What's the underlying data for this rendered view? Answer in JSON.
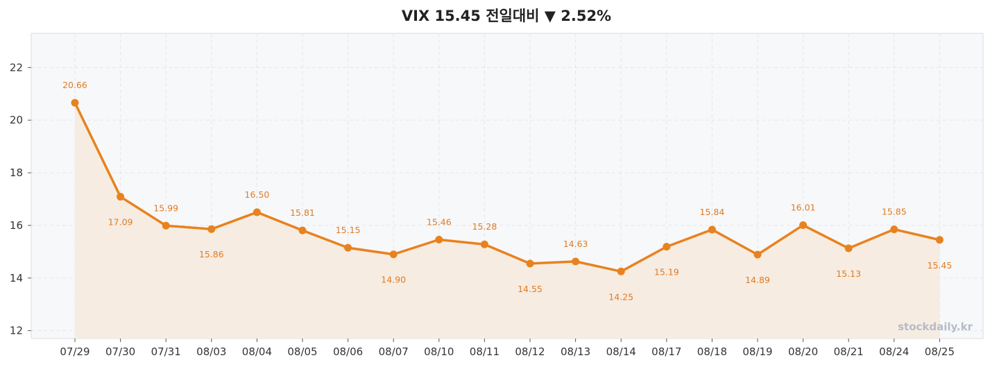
{
  "chart_data": {
    "type": "line",
    "title": "VIX  15.45  전일대비 ▼ 2.52%",
    "categories": [
      "07/29",
      "07/30",
      "07/31",
      "08/03",
      "08/04",
      "08/05",
      "08/06",
      "08/07",
      "08/10",
      "08/11",
      "08/12",
      "08/13",
      "08/14",
      "08/17",
      "08/18",
      "08/19",
      "08/20",
      "08/21",
      "08/24",
      "08/25"
    ],
    "series": [
      {
        "values": [
          20.66,
          17.09,
          15.99,
          15.86,
          16.5,
          15.81,
          15.15,
          14.9,
          15.46,
          15.28,
          14.55,
          14.63,
          14.25,
          15.19,
          15.84,
          14.89,
          16.01,
          15.13,
          15.85,
          15.45
        ]
      }
    ],
    "data_labels": [
      "20.66",
      "17.09",
      "15.99",
      "15.86",
      "16.50",
      "15.81",
      "15.15",
      "14.90",
      "15.46",
      "15.28",
      "14.55",
      "14.63",
      "14.25",
      "15.19",
      "15.84",
      "14.89",
      "16.01",
      "15.13",
      "15.85",
      "15.45"
    ],
    "yticks": [
      12,
      14,
      16,
      18,
      20,
      22
    ],
    "ylim": [
      11.7,
      23.3
    ],
    "grid": true,
    "line_color": "#e8821e",
    "fill_color": "#f5ebe0",
    "plot_bg": "#f7f8fa",
    "watermark": "stockdaily.kr"
  }
}
